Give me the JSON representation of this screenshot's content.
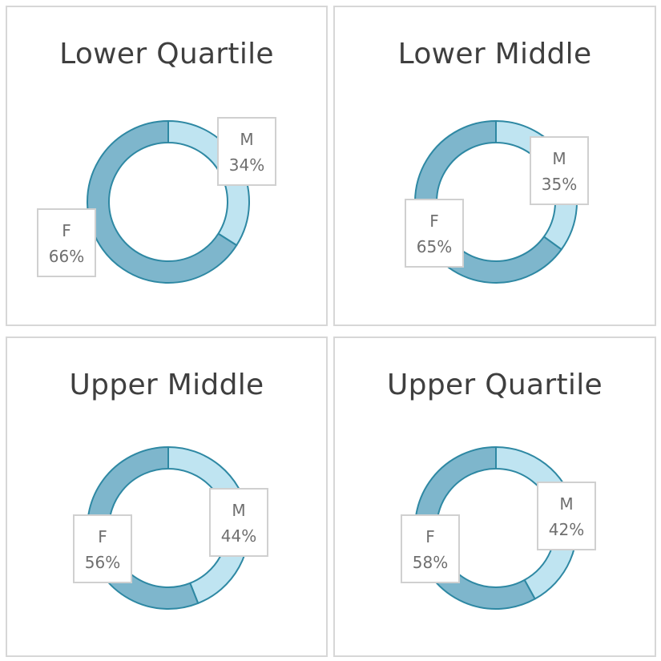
{
  "chart_data": [
    {
      "type": "pie",
      "title": "Lower Quartile",
      "categories": [
        "M",
        "F"
      ],
      "values": [
        34,
        66
      ],
      "labels": [
        "34%",
        "66%"
      ]
    },
    {
      "type": "pie",
      "title": "Lower Middle",
      "categories": [
        "M",
        "F"
      ],
      "values": [
        35,
        65
      ],
      "labels": [
        "35%",
        "65%"
      ]
    },
    {
      "type": "pie",
      "title": "Upper Middle",
      "categories": [
        "M",
        "F"
      ],
      "values": [
        44,
        56
      ],
      "labels": [
        "44%",
        "56%"
      ]
    },
    {
      "type": "pie",
      "title": "Upper Quartile",
      "categories": [
        "M",
        "F"
      ],
      "values": [
        42,
        58
      ],
      "labels": [
        "42%",
        "58%"
      ]
    }
  ],
  "colors": {
    "M": "#bfe4f1",
    "F": "#7eb6cc",
    "outline": "#2e88a3",
    "label_border": "#d0d0d0",
    "label_text": "#6f6f6f",
    "title_text": "#3f3f3f"
  }
}
